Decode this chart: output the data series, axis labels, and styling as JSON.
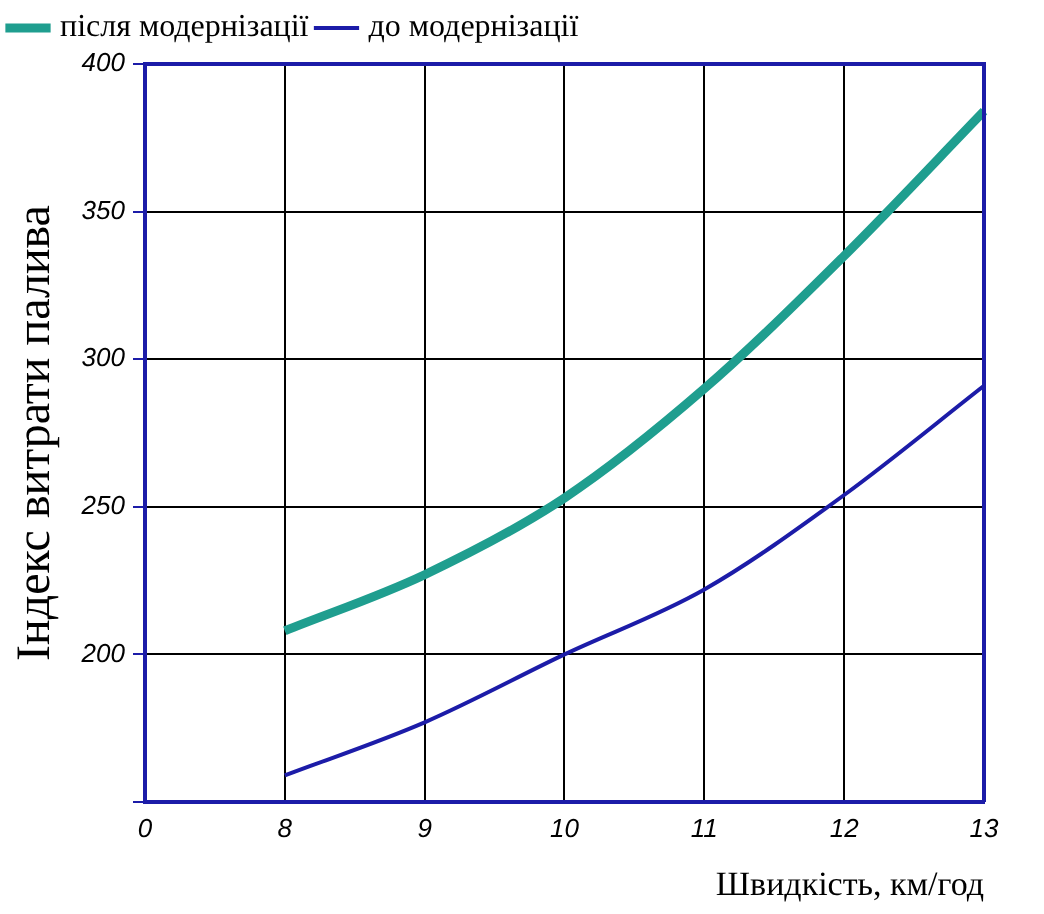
{
  "chart_data": {
    "type": "line",
    "xlabel": "Швидкість, км/год",
    "ylabel": "Індекс витрати палива",
    "categories": [
      "0",
      "8",
      "9",
      "10",
      "11",
      "12",
      "13"
    ],
    "series": [
      {
        "name": "після модернізації",
        "color": "#1f9e8f",
        "values": [
          null,
          208,
          227,
          253,
          290,
          335,
          384
        ]
      },
      {
        "name": "до модернізації",
        "color": "#1c1ca8",
        "values": [
          null,
          159,
          177,
          200,
          222,
          254,
          291
        ]
      }
    ],
    "ylim": [
      150,
      400
    ],
    "yticks": [
      {
        "value": 150,
        "label": null
      },
      200,
      250,
      300,
      350,
      400
    ],
    "grid": true,
    "legend": "top left",
    "marker": "none",
    "line_style": "solid"
  }
}
